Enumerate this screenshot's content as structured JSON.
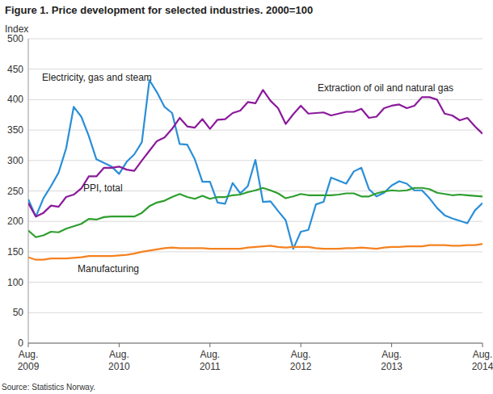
{
  "chart_data": {
    "type": "line",
    "title": "Figure 1. Price development for selected industries. 2000=100",
    "y_label": "Index",
    "source": "Source: Statistics Norway.",
    "categories": [
      "Aug. 2009",
      null,
      null,
      null,
      null,
      null,
      null,
      null,
      null,
      null,
      null,
      null,
      "Aug. 2010",
      null,
      null,
      null,
      null,
      null,
      null,
      null,
      null,
      null,
      null,
      null,
      "Aug. 2011",
      null,
      null,
      null,
      null,
      null,
      null,
      null,
      null,
      null,
      null,
      null,
      "Aug. 2012",
      null,
      null,
      null,
      null,
      null,
      null,
      null,
      null,
      null,
      null,
      null,
      "Aug. 2013",
      null,
      null,
      null,
      null,
      null,
      null,
      null,
      null,
      null,
      null,
      null,
      "Aug. 2014"
    ],
    "series": [
      {
        "name": "Electricity, gas and steam",
        "color": "#2a8fd8",
        "values": [
          236,
          208,
          238,
          258,
          280,
          320,
          388,
          372,
          340,
          302,
          296,
          290,
          278,
          298,
          310,
          330,
          432,
          412,
          388,
          378,
          327,
          326,
          302,
          265,
          265,
          231,
          229,
          263,
          246,
          258,
          301,
          232,
          233,
          217,
          202,
          155,
          183,
          186,
          228,
          232,
          272,
          267,
          262,
          282,
          288,
          253,
          241,
          247,
          259,
          266,
          262,
          251,
          251,
          238,
          222,
          210,
          205,
          201,
          197,
          218,
          230
        ]
      },
      {
        "name": "Extraction of oil and natural gas",
        "color": "#8b1a9b",
        "values": [
          230,
          208,
          214,
          226,
          224,
          240,
          244,
          254,
          274,
          274,
          288,
          288,
          290,
          285,
          283,
          300,
          316,
          332,
          338,
          352,
          370,
          356,
          354,
          368,
          352,
          367,
          368,
          378,
          382,
          396,
          394,
          416,
          398,
          386,
          360,
          376,
          390,
          377,
          378,
          379,
          374,
          377,
          380,
          380,
          385,
          370,
          372,
          386,
          390,
          392,
          386,
          390,
          404,
          404,
          400,
          377,
          374,
          366,
          370,
          356,
          344
        ]
      },
      {
        "name": "PPI, total",
        "color": "#2e9e2e",
        "values": [
          185,
          174,
          177,
          183,
          182,
          188,
          192,
          196,
          204,
          203,
          207,
          208,
          208,
          208,
          208,
          214,
          225,
          231,
          234,
          240,
          245,
          240,
          237,
          242,
          237,
          240,
          240,
          243,
          244,
          248,
          251,
          255,
          251,
          246,
          238,
          241,
          245,
          243,
          243,
          243,
          243,
          244,
          246,
          246,
          241,
          241,
          246,
          249,
          251,
          250,
          251,
          255,
          255,
          253,
          247,
          245,
          243,
          244,
          243,
          242,
          241
        ]
      },
      {
        "name": "Manufacturing",
        "color": "#f58220",
        "values": [
          141,
          137,
          137,
          139,
          139,
          139,
          140,
          141,
          143,
          143,
          143,
          143,
          144,
          145,
          147,
          150,
          152,
          154,
          156,
          157,
          156,
          156,
          156,
          156,
          155,
          155,
          155,
          155,
          155,
          157,
          158,
          159,
          160,
          158,
          157,
          158,
          158,
          158,
          156,
          155,
          155,
          155,
          156,
          156,
          157,
          156,
          155,
          157,
          158,
          158,
          159,
          159,
          159,
          161,
          161,
          161,
          160,
          160,
          161,
          161,
          163
        ]
      }
    ],
    "ylim": [
      0,
      500
    ],
    "yticks": [
      0,
      50,
      100,
      150,
      200,
      250,
      300,
      350,
      400,
      450,
      500
    ],
    "grid": true
  }
}
